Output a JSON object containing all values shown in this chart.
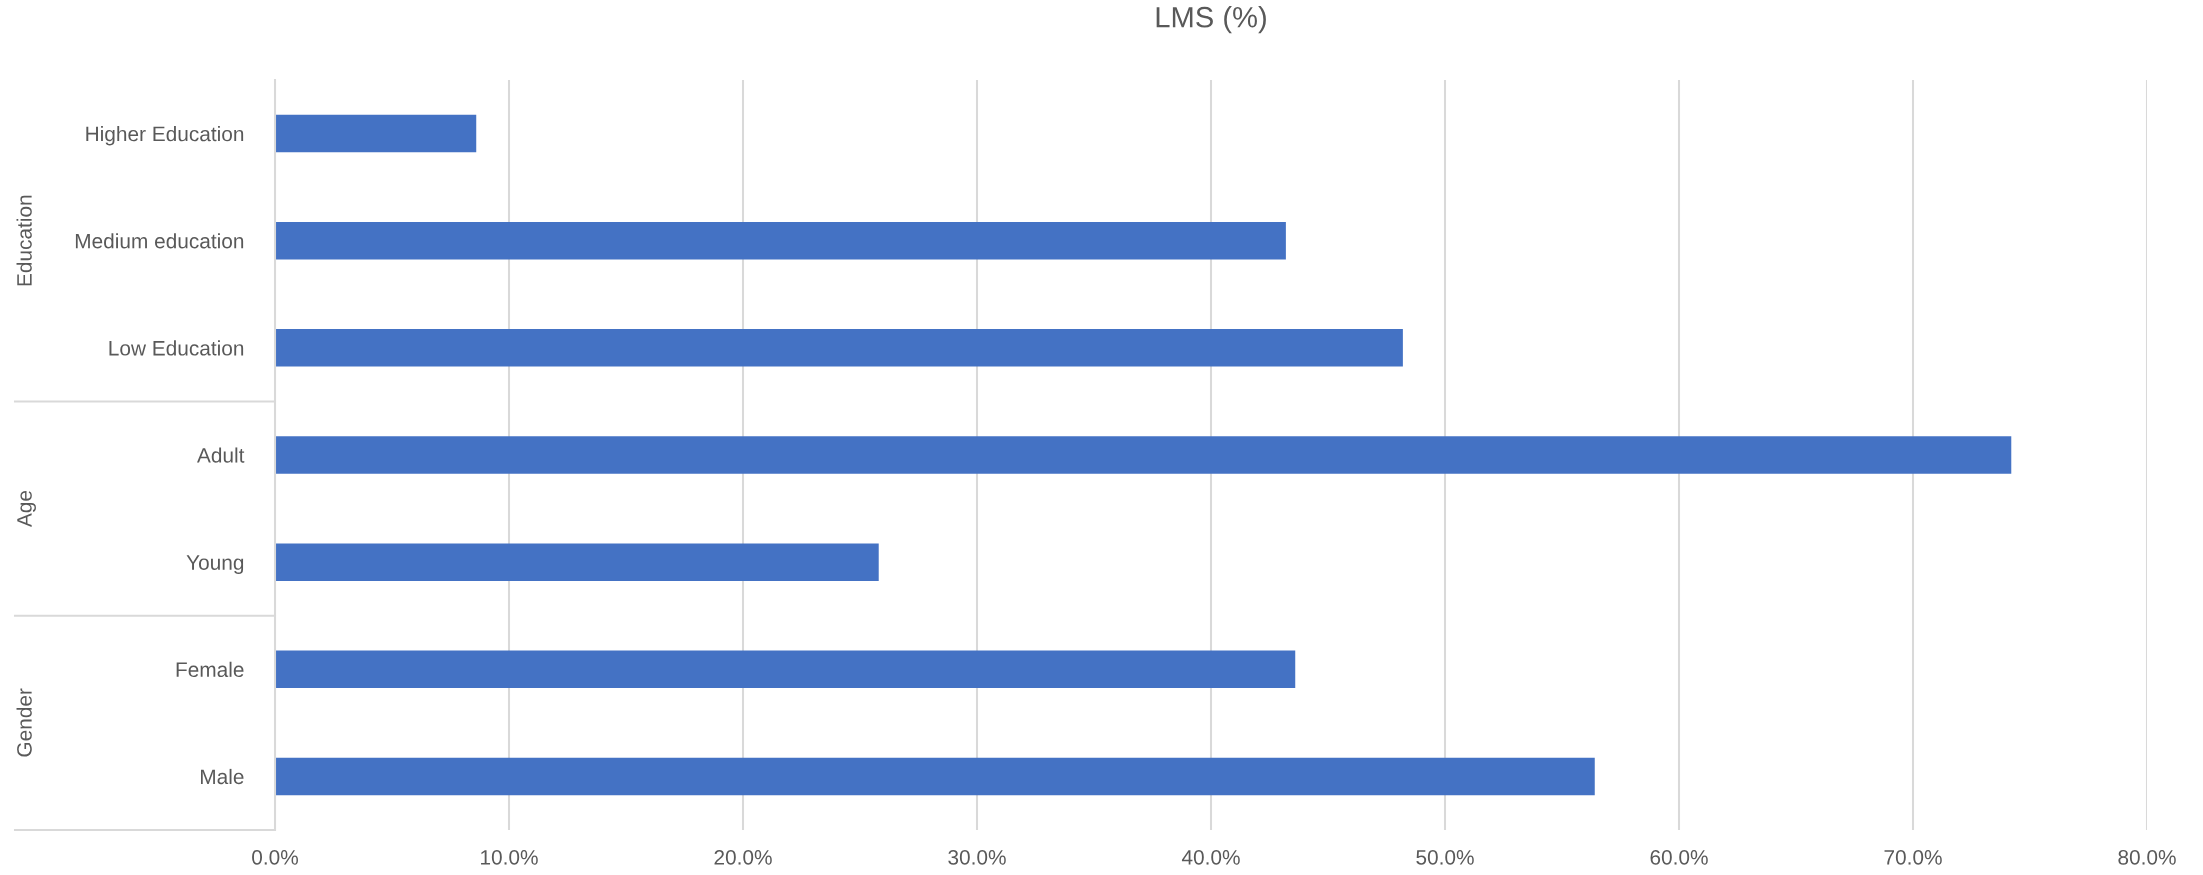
{
  "chart_data": {
    "type": "bar",
    "orientation": "horizontal",
    "title": "LMS (%)",
    "categories": [
      "Higher Education",
      "Medium education",
      "Low Education",
      "Adult",
      "Young",
      "Female",
      "Male"
    ],
    "values": [
      8.6,
      43.2,
      48.2,
      74.2,
      25.8,
      43.6,
      56.4
    ],
    "color": "#4472c4",
    "xlim": [
      0,
      80
    ],
    "xticks": [
      {
        "value": 0,
        "label": "0.0%"
      },
      {
        "value": 10,
        "label": "10.0%"
      },
      {
        "value": 20,
        "label": "20.0%"
      },
      {
        "value": 30,
        "label": "30.0%"
      },
      {
        "value": 40,
        "label": "40.0%"
      },
      {
        "value": 50,
        "label": "50.0%"
      },
      {
        "value": 60,
        "label": "60.0%"
      },
      {
        "value": 70,
        "label": "70.0%"
      },
      {
        "value": 80,
        "label": "80.0%"
      }
    ],
    "grid": "x",
    "annotations": [
      "Education",
      "Age",
      "Gender"
    ]
  }
}
